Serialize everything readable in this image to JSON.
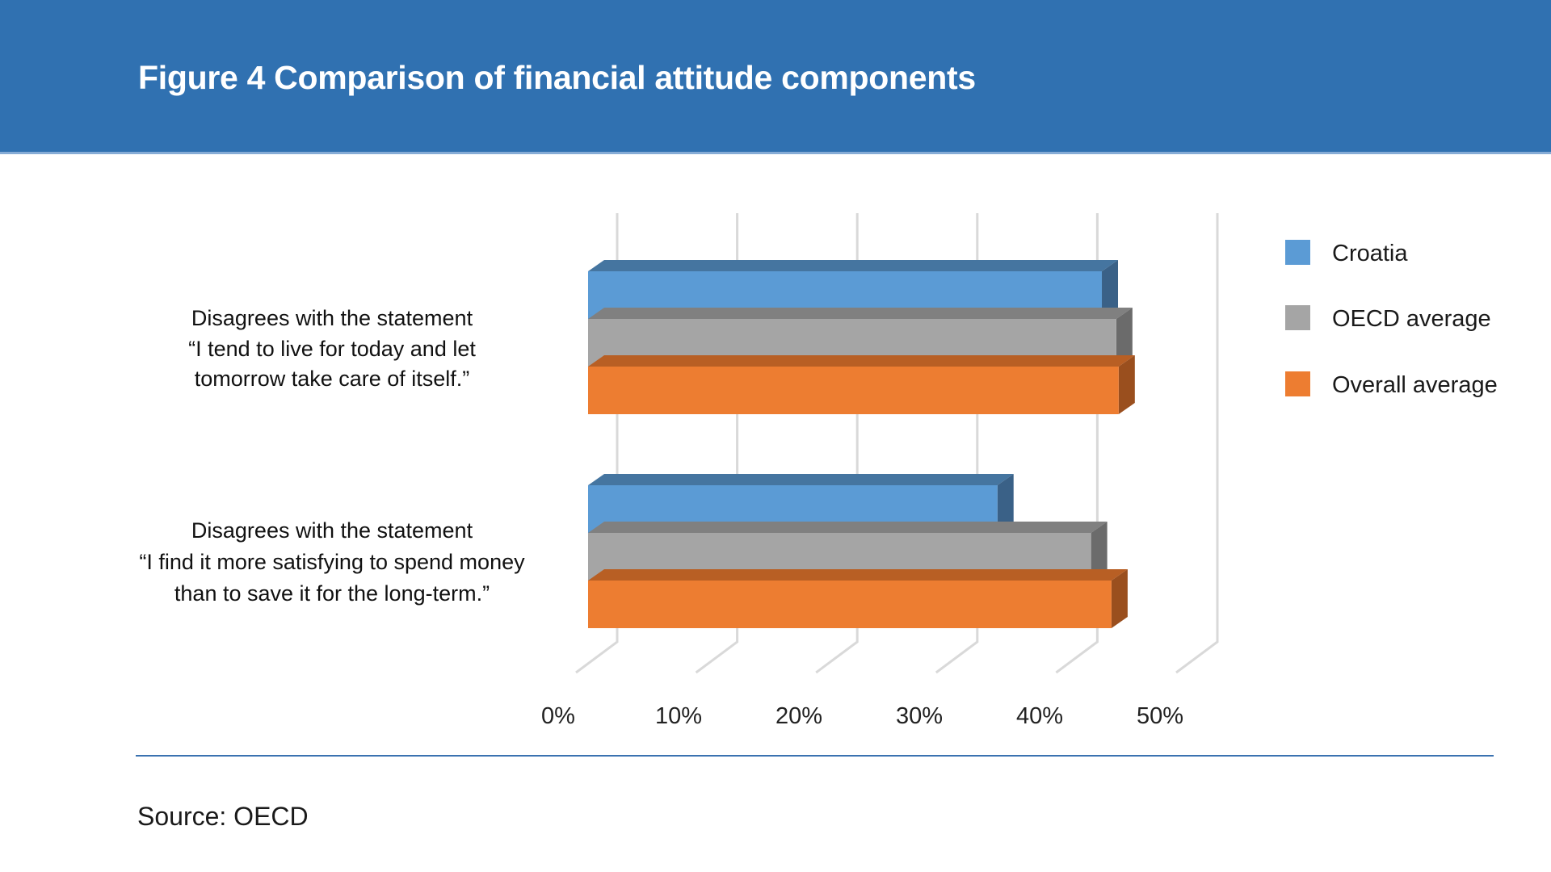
{
  "header": {
    "title": "Figure 4 Comparison of financial attitude components",
    "background_color": "#3071b1"
  },
  "footer": {
    "source": "Source: OECD"
  },
  "chart_data": {
    "type": "bar",
    "orientation": "horizontal",
    "style": "3d-clustered",
    "title": "Figure 4 Comparison of financial attitude components",
    "xlabel": "",
    "ylabel": "",
    "xlim": [
      0,
      50
    ],
    "x_ticks": [
      0,
      10,
      20,
      30,
      40,
      50
    ],
    "x_tick_labels": [
      "0%",
      "10%",
      "20%",
      "30%",
      "40%",
      "50%"
    ],
    "grid": true,
    "legend_position": "right",
    "categories": [
      {
        "label_lines": [
          "Disagrees with the statement",
          "“I tend to live for today and let",
          "tomorrow take care of itself.”"
        ]
      },
      {
        "label_lines": [
          "Disagrees with the statement",
          "“I find it more satisfying to spend money",
          "than to save it for the long-term.”"
        ]
      }
    ],
    "series": [
      {
        "name": "Croatia",
        "color": "#5b9bd5",
        "top_color": "#4575a0",
        "side_color": "#3a6187",
        "values": [
          42.8,
          34.1
        ]
      },
      {
        "name": "OECD average",
        "color": "#a5a5a5",
        "top_color": "#808080",
        "side_color": "#6b6b6b",
        "values": [
          44.0,
          41.9
        ]
      },
      {
        "name": "Overall average",
        "color": "#ed7d31",
        "top_color": "#b85f24",
        "side_color": "#9a4f1e",
        "values": [
          44.2,
          43.6
        ]
      }
    ],
    "units": "percent"
  }
}
